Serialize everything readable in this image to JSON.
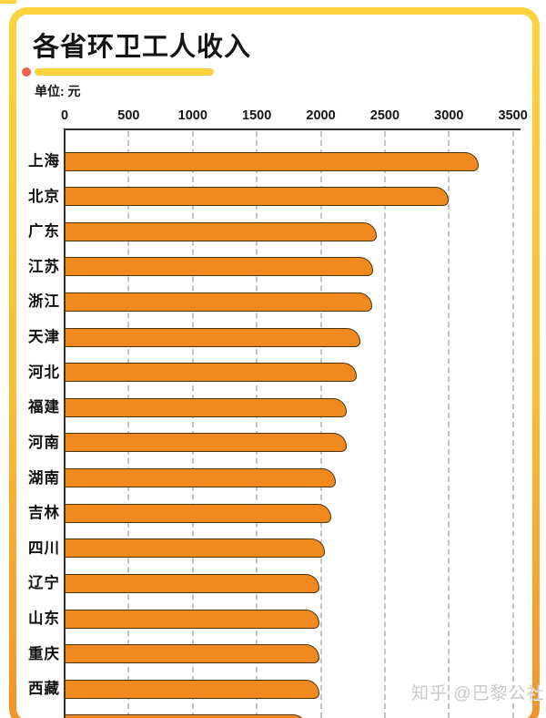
{
  "page": {
    "title": "各省环卫工人收入",
    "unit_label": "单位: 元",
    "watermark": "知乎 @巴黎公社"
  },
  "chart_data": {
    "type": "bar",
    "orientation": "horizontal",
    "title": "各省环卫工人收入",
    "unit": "元",
    "xlim": [
      0,
      3500
    ],
    "x_ticks": [
      0,
      500,
      1000,
      1500,
      2000,
      2500,
      3000,
      3500
    ],
    "grid": "vertical-dashed",
    "legend": "none",
    "categories": [
      "上海",
      "北京",
      "广东",
      "江苏",
      "浙江",
      "天津",
      "河北",
      "福建",
      "河南",
      "湖南",
      "吉林",
      "四川",
      "辽宁",
      "山东",
      "重庆",
      "西藏",
      ""
    ],
    "values": [
      3230,
      3000,
      2440,
      2410,
      2400,
      2310,
      2280,
      2200,
      2200,
      2120,
      2080,
      2030,
      1990,
      1990,
      1990,
      1990,
      1890
    ],
    "note": "last bar is cut off by the bottom edge of the image; its label is not visible"
  },
  "colors": {
    "frame_top": "#FFD23F",
    "frame_bottom": "#F0942C",
    "underline": "#FFD23F",
    "dot": "#E8614D",
    "bar_fill": "#F08A1E",
    "bar_outline": "#4A3410",
    "axis": "#2F2F2F",
    "gridline": "#C4C4C4",
    "watermark_text": "#C9C9C9"
  }
}
